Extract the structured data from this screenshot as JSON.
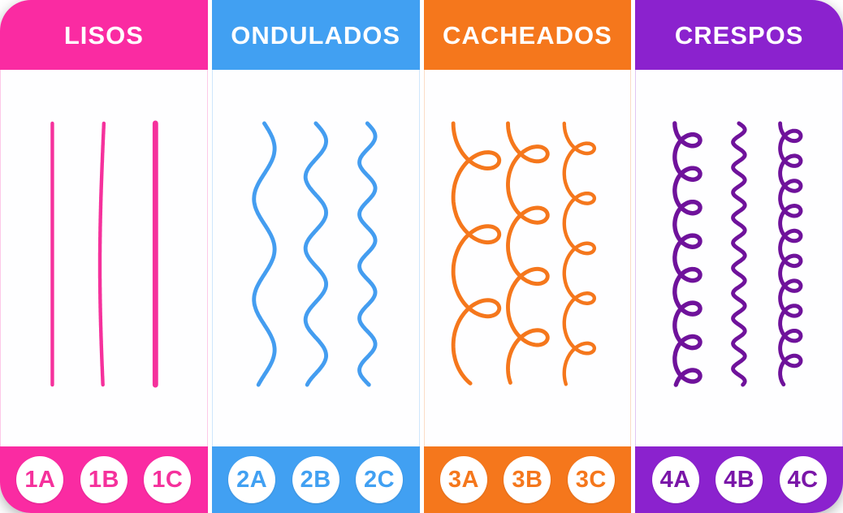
{
  "columns": [
    {
      "id": "lisos",
      "title": "LISOS",
      "color": "#FA2BA2",
      "strand_color": "#F5319C",
      "badge_text_color": "#F5319C",
      "strands": [
        {
          "label": "1A",
          "shape": "straight-fine-line",
          "kind": "straight",
          "w": 4.5
        },
        {
          "label": "1B",
          "shape": "straight-gentle-bend",
          "kind": "wave",
          "a": -5,
          "p": 700,
          "w": 4.5
        },
        {
          "label": "1C",
          "shape": "straight-thick-line",
          "kind": "straight",
          "w": 7
        }
      ],
      "badges": [
        {
          "label": "1A"
        },
        {
          "label": "1B"
        },
        {
          "label": "1C"
        }
      ]
    },
    {
      "id": "ondulados",
      "title": "ONDULADOS",
      "color": "#41A0F2",
      "strand_color": "#449DF0",
      "badge_text_color": "#41A0F2",
      "strands": [
        {
          "label": "2A",
          "shape": "loose-wave",
          "kind": "wave",
          "a": 13,
          "p": 124,
          "w": 5
        },
        {
          "label": "2B",
          "shape": "medium-wave",
          "kind": "wave",
          "a": 13,
          "p": 88,
          "w": 5
        },
        {
          "label": "2C",
          "shape": "tight-wave",
          "kind": "wave",
          "a": 10,
          "p": 64,
          "w": 5
        }
      ],
      "badges": [
        {
          "label": "2A"
        },
        {
          "label": "2B"
        },
        {
          "label": "2C"
        }
      ]
    },
    {
      "id": "cacheados",
      "title": "CACHEADOS",
      "color": "#F5771C",
      "strand_color": "#F5771C",
      "badge_text_color": "#F5771C",
      "strands": [
        {
          "label": "3A",
          "shape": "large-curl-loops",
          "kind": "loop",
          "d": 29,
          "r": 14.5,
          "w": 5
        },
        {
          "label": "3B",
          "shape": "medium-curl-loops",
          "kind": "loop",
          "d": 25,
          "r": 12,
          "w": 5
        },
        {
          "label": "3C",
          "shape": "small-curl-loops",
          "kind": "loop",
          "d": 19,
          "r": 9.8,
          "w": 4.5
        }
      ],
      "badges": [
        {
          "label": "3A"
        },
        {
          "label": "3B"
        },
        {
          "label": "3C"
        }
      ]
    },
    {
      "id": "crespos",
      "title": "CRESPOS",
      "color": "#8B22CE",
      "strand_color": "#6F129B",
      "badge_text_color": "#7A16A8",
      "strands": [
        {
          "label": "4A",
          "shape": "tight-coil",
          "kind": "loop",
          "d": 16,
          "r": 6.6,
          "w": 5.5
        },
        {
          "label": "4B",
          "shape": "tight-zigzag-wave",
          "kind": "wave",
          "a": 7.5,
          "p": 31,
          "w": 5
        },
        {
          "label": "4C",
          "shape": "very-tight-coil",
          "kind": "loop",
          "d": 13,
          "r": 4.9,
          "w": 5
        }
      ],
      "badges": [
        {
          "label": "4A"
        },
        {
          "label": "4B"
        },
        {
          "label": "4C"
        }
      ]
    }
  ]
}
